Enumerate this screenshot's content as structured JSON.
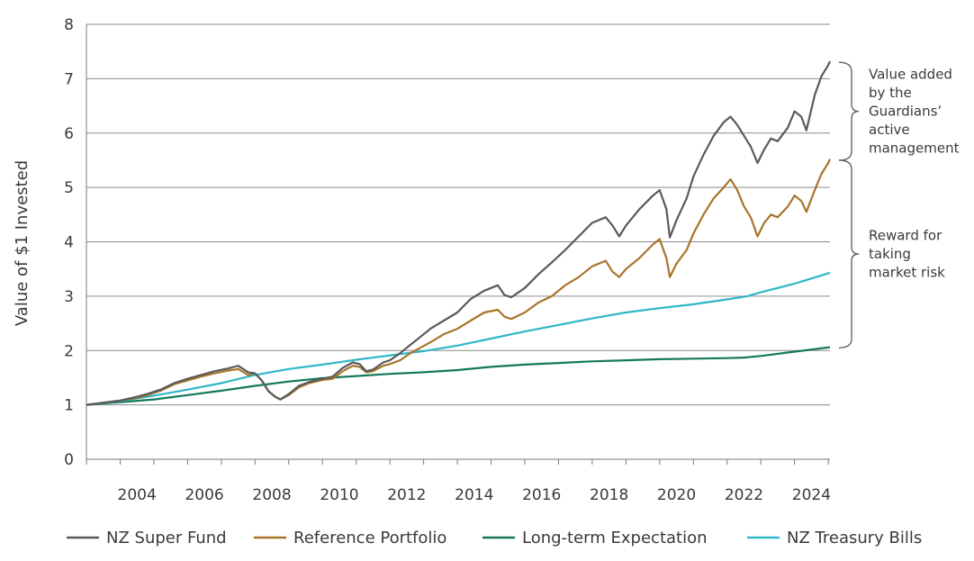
{
  "chart_data": {
    "type": "line",
    "title": "",
    "xlabel": "",
    "ylabel": "Value of $1 Invested",
    "xlim": [
      2003.0,
      2024.0
    ],
    "ylim": [
      0,
      8
    ],
    "y_ticks": [
      0,
      1,
      2,
      3,
      4,
      5,
      6,
      7,
      8
    ],
    "x_ticks": [
      2004,
      2006,
      2008,
      2010,
      2012,
      2014,
      2016,
      2018,
      2020,
      2022,
      2024
    ],
    "grid": "horizontal",
    "legend_position": "bottom",
    "colors": {
      "nz_super_fund": "#5a5a5a",
      "reference_portfolio": "#a8742a",
      "long_term_expectation": "#14785c",
      "nz_treasury_bills": "#2eb8c8"
    },
    "annotations": [
      {
        "id": "value-added",
        "lines": [
          "Value added",
          "by the",
          "Guardians’",
          "active",
          "management"
        ],
        "y_range": [
          5.5,
          7.3
        ]
      },
      {
        "id": "market-risk",
        "lines": [
          "Reward for",
          "taking",
          "market risk"
        ],
        "y_range": [
          2.05,
          5.5
        ]
      }
    ],
    "series": [
      {
        "name": "NZ Super Fund",
        "key": "nz_super_fund",
        "points": [
          [
            2003.0,
            1.0
          ],
          [
            2003.5,
            1.04
          ],
          [
            2004.0,
            1.08
          ],
          [
            2004.5,
            1.15
          ],
          [
            2004.8,
            1.2
          ],
          [
            2005.2,
            1.28
          ],
          [
            2005.6,
            1.4
          ],
          [
            2006.0,
            1.48
          ],
          [
            2006.4,
            1.55
          ],
          [
            2006.8,
            1.62
          ],
          [
            2007.2,
            1.67
          ],
          [
            2007.5,
            1.72
          ],
          [
            2007.8,
            1.6
          ],
          [
            2008.0,
            1.58
          ],
          [
            2008.2,
            1.45
          ],
          [
            2008.4,
            1.25
          ],
          [
            2008.6,
            1.15
          ],
          [
            2008.75,
            1.1
          ],
          [
            2009.0,
            1.2
          ],
          [
            2009.3,
            1.35
          ],
          [
            2009.6,
            1.42
          ],
          [
            2010.0,
            1.48
          ],
          [
            2010.3,
            1.52
          ],
          [
            2010.6,
            1.68
          ],
          [
            2010.9,
            1.78
          ],
          [
            2011.1,
            1.75
          ],
          [
            2011.3,
            1.62
          ],
          [
            2011.5,
            1.65
          ],
          [
            2011.8,
            1.78
          ],
          [
            2012.0,
            1.82
          ],
          [
            2012.3,
            1.95
          ],
          [
            2012.6,
            2.1
          ],
          [
            2012.9,
            2.25
          ],
          [
            2013.2,
            2.4
          ],
          [
            2013.6,
            2.55
          ],
          [
            2014.0,
            2.7
          ],
          [
            2014.4,
            2.95
          ],
          [
            2014.8,
            3.1
          ],
          [
            2015.2,
            3.2
          ],
          [
            2015.4,
            3.02
          ],
          [
            2015.6,
            2.98
          ],
          [
            2016.0,
            3.15
          ],
          [
            2016.4,
            3.4
          ],
          [
            2016.8,
            3.62
          ],
          [
            2017.2,
            3.85
          ],
          [
            2017.6,
            4.1
          ],
          [
            2018.0,
            4.35
          ],
          [
            2018.4,
            4.45
          ],
          [
            2018.6,
            4.3
          ],
          [
            2018.8,
            4.1
          ],
          [
            2019.0,
            4.3
          ],
          [
            2019.4,
            4.6
          ],
          [
            2019.8,
            4.85
          ],
          [
            2020.0,
            4.95
          ],
          [
            2020.2,
            4.6
          ],
          [
            2020.3,
            4.08
          ],
          [
            2020.5,
            4.4
          ],
          [
            2020.8,
            4.8
          ],
          [
            2021.0,
            5.2
          ],
          [
            2021.3,
            5.6
          ],
          [
            2021.6,
            5.95
          ],
          [
            2021.9,
            6.2
          ],
          [
            2022.1,
            6.3
          ],
          [
            2022.3,
            6.15
          ],
          [
            2022.5,
            5.95
          ],
          [
            2022.7,
            5.75
          ],
          [
            2022.9,
            5.45
          ],
          [
            2023.1,
            5.7
          ],
          [
            2023.3,
            5.9
          ],
          [
            2023.5,
            5.85
          ],
          [
            2023.8,
            6.1
          ],
          [
            2024.0,
            6.4
          ],
          [
            2024.2,
            6.3
          ],
          [
            2024.35,
            6.05
          ],
          [
            2024.6,
            6.7
          ],
          [
            2024.8,
            7.05
          ],
          [
            2025.0,
            7.25
          ],
          [
            2025.05,
            7.32
          ]
        ]
      },
      {
        "name": "Reference Portfolio",
        "key": "reference_portfolio",
        "points": [
          [
            2003.0,
            1.0
          ],
          [
            2003.5,
            1.04
          ],
          [
            2004.0,
            1.08
          ],
          [
            2004.5,
            1.13
          ],
          [
            2004.8,
            1.18
          ],
          [
            2005.2,
            1.26
          ],
          [
            2005.6,
            1.38
          ],
          [
            2006.0,
            1.45
          ],
          [
            2006.4,
            1.52
          ],
          [
            2006.8,
            1.58
          ],
          [
            2007.2,
            1.63
          ],
          [
            2007.5,
            1.66
          ],
          [
            2007.8,
            1.55
          ],
          [
            2008.0,
            1.58
          ],
          [
            2008.2,
            1.45
          ],
          [
            2008.4,
            1.25
          ],
          [
            2008.6,
            1.15
          ],
          [
            2008.75,
            1.1
          ],
          [
            2009.0,
            1.18
          ],
          [
            2009.3,
            1.32
          ],
          [
            2009.6,
            1.4
          ],
          [
            2010.0,
            1.46
          ],
          [
            2010.3,
            1.48
          ],
          [
            2010.6,
            1.62
          ],
          [
            2010.9,
            1.72
          ],
          [
            2011.1,
            1.7
          ],
          [
            2011.3,
            1.6
          ],
          [
            2011.5,
            1.62
          ],
          [
            2011.8,
            1.72
          ],
          [
            2012.0,
            1.75
          ],
          [
            2012.3,
            1.82
          ],
          [
            2012.6,
            1.95
          ],
          [
            2012.9,
            2.05
          ],
          [
            2013.2,
            2.15
          ],
          [
            2013.6,
            2.3
          ],
          [
            2014.0,
            2.4
          ],
          [
            2014.4,
            2.55
          ],
          [
            2014.8,
            2.7
          ],
          [
            2015.2,
            2.75
          ],
          [
            2015.4,
            2.62
          ],
          [
            2015.6,
            2.58
          ],
          [
            2016.0,
            2.7
          ],
          [
            2016.4,
            2.88
          ],
          [
            2016.8,
            3.0
          ],
          [
            2017.2,
            3.2
          ],
          [
            2017.6,
            3.35
          ],
          [
            2018.0,
            3.55
          ],
          [
            2018.4,
            3.65
          ],
          [
            2018.6,
            3.45
          ],
          [
            2018.8,
            3.35
          ],
          [
            2019.0,
            3.5
          ],
          [
            2019.4,
            3.7
          ],
          [
            2019.8,
            3.95
          ],
          [
            2020.0,
            4.05
          ],
          [
            2020.2,
            3.7
          ],
          [
            2020.3,
            3.35
          ],
          [
            2020.5,
            3.6
          ],
          [
            2020.8,
            3.85
          ],
          [
            2021.0,
            4.15
          ],
          [
            2021.3,
            4.5
          ],
          [
            2021.6,
            4.8
          ],
          [
            2021.9,
            5.0
          ],
          [
            2022.1,
            5.15
          ],
          [
            2022.3,
            4.95
          ],
          [
            2022.5,
            4.65
          ],
          [
            2022.7,
            4.45
          ],
          [
            2022.9,
            4.1
          ],
          [
            2023.1,
            4.35
          ],
          [
            2023.3,
            4.5
          ],
          [
            2023.5,
            4.45
          ],
          [
            2023.8,
            4.65
          ],
          [
            2024.0,
            4.85
          ],
          [
            2024.2,
            4.75
          ],
          [
            2024.35,
            4.55
          ],
          [
            2024.6,
            4.95
          ],
          [
            2024.8,
            5.25
          ],
          [
            2025.0,
            5.45
          ],
          [
            2025.05,
            5.52
          ]
        ]
      },
      {
        "name": "Long-term Expectation",
        "key": "long_term_expectation",
        "points": [
          [
            2003.0,
            1.0
          ],
          [
            2004.0,
            1.05
          ],
          [
            2005.0,
            1.1
          ],
          [
            2006.0,
            1.18
          ],
          [
            2007.0,
            1.26
          ],
          [
            2008.0,
            1.35
          ],
          [
            2009.0,
            1.43
          ],
          [
            2010.0,
            1.49
          ],
          [
            2011.0,
            1.53
          ],
          [
            2012.0,
            1.57
          ],
          [
            2013.0,
            1.6
          ],
          [
            2014.0,
            1.64
          ],
          [
            2015.0,
            1.7
          ],
          [
            2016.0,
            1.74
          ],
          [
            2017.0,
            1.77
          ],
          [
            2018.0,
            1.8
          ],
          [
            2019.0,
            1.82
          ],
          [
            2020.0,
            1.84
          ],
          [
            2021.0,
            1.85
          ],
          [
            2022.0,
            1.86
          ],
          [
            2022.5,
            1.87
          ],
          [
            2023.0,
            1.9
          ],
          [
            2024.0,
            1.98
          ],
          [
            2025.05,
            2.06
          ]
        ]
      },
      {
        "name": "NZ Treasury Bills",
        "key": "nz_treasury_bills",
        "points": [
          [
            2003.0,
            1.0
          ],
          [
            2004.0,
            1.07
          ],
          [
            2005.0,
            1.17
          ],
          [
            2006.0,
            1.28
          ],
          [
            2007.0,
            1.4
          ],
          [
            2008.0,
            1.55
          ],
          [
            2009.0,
            1.66
          ],
          [
            2010.0,
            1.74
          ],
          [
            2011.0,
            1.83
          ],
          [
            2012.0,
            1.91
          ],
          [
            2013.0,
            1.99
          ],
          [
            2014.0,
            2.09
          ],
          [
            2015.0,
            2.22
          ],
          [
            2016.0,
            2.35
          ],
          [
            2017.0,
            2.47
          ],
          [
            2018.0,
            2.59
          ],
          [
            2019.0,
            2.7
          ],
          [
            2020.0,
            2.78
          ],
          [
            2021.0,
            2.85
          ],
          [
            2022.0,
            2.94
          ],
          [
            2022.6,
            3.0
          ],
          [
            2023.0,
            3.07
          ],
          [
            2024.0,
            3.23
          ],
          [
            2025.05,
            3.43
          ]
        ]
      }
    ]
  }
}
